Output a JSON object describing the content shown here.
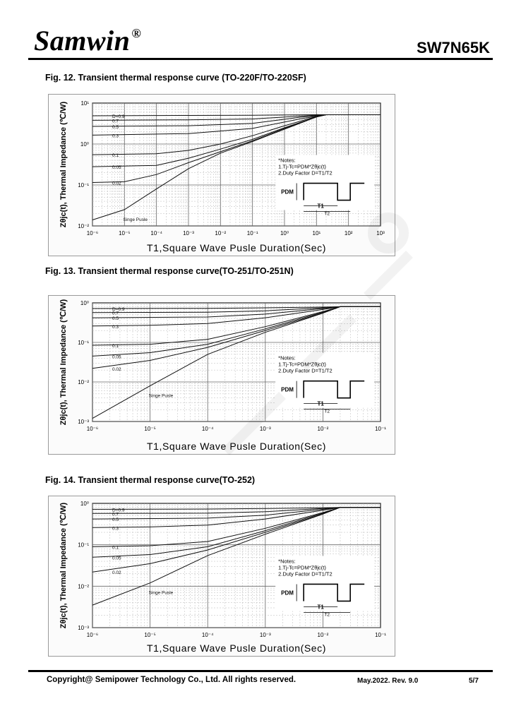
{
  "header": {
    "brand": "Samwin",
    "registered_mark": "®",
    "part_number": "SW7N65K"
  },
  "figures": [
    {
      "title": "Fig. 12. Transient thermal response curve (TO-220F/TO-220SF)"
    },
    {
      "title": "Fig. 13. Transient thermal response curve(TO-251/TO-251N)"
    },
    {
      "title": "Fig. 14. Transient thermal response curve(TO-252)"
    }
  ],
  "footer": {
    "copyright": "Copyright@ Semipower Technology Co., Ltd. All rights reserved.",
    "date_rev": "May.2022. Rev. 9.0",
    "page": "5/7"
  },
  "chart_data": [
    {
      "type": "line",
      "title": "Fig. 12. Transient thermal response curve (TO-220F/TO-220SF)",
      "xlabel": "T1,Square Wave Pusle Duration(Sec)",
      "ylabel": "Zθjc(t), Thermal Impedance (℃/W)",
      "xscale": "log",
      "yscale": "log",
      "xlim": [
        1e-06,
        1000
      ],
      "ylim": [
        0.01,
        10
      ],
      "x_ticks": [
        "10⁻⁶",
        "10⁻⁵",
        "10⁻⁴",
        "10⁻³",
        "10⁻²",
        "10⁻¹",
        "10⁰",
        "10¹",
        "10²",
        "10³"
      ],
      "y_ticks": [
        "10⁻²",
        "10⁻¹",
        "10⁰",
        "10¹"
      ],
      "grid": true,
      "series": [
        {
          "name": "D=0.9",
          "values": [
            [
              1e-06,
              4.9
            ],
            [
              0.001,
              5.0
            ],
            [
              0.1,
              5.05
            ],
            [
              10,
              5.2
            ],
            [
              1000,
              5.2
            ]
          ]
        },
        {
          "name": "0.7",
          "values": [
            [
              1e-06,
              3.8
            ],
            [
              0.001,
              3.9
            ],
            [
              0.1,
              4.1
            ],
            [
              3,
              4.8
            ],
            [
              20,
              5.2
            ],
            [
              1000,
              5.2
            ]
          ]
        },
        {
          "name": "0.5",
          "values": [
            [
              1e-06,
              2.7
            ],
            [
              0.001,
              2.8
            ],
            [
              0.1,
              3.2
            ],
            [
              3,
              4.5
            ],
            [
              20,
              5.2
            ],
            [
              1000,
              5.2
            ]
          ]
        },
        {
          "name": "0.3",
          "values": [
            [
              1e-06,
              1.65
            ],
            [
              0.001,
              1.8
            ],
            [
              0.1,
              2.4
            ],
            [
              3,
              4.1
            ],
            [
              20,
              5.2
            ],
            [
              1000,
              5.2
            ]
          ]
        },
        {
          "name": "0.1",
          "values": [
            [
              1e-06,
              0.55
            ],
            [
              0.0001,
              0.58
            ],
            [
              0.001,
              0.7
            ],
            [
              0.01,
              1.0
            ],
            [
              0.1,
              1.6
            ],
            [
              1,
              2.8
            ],
            [
              10,
              4.7
            ],
            [
              20,
              5.2
            ],
            [
              1000,
              5.2
            ]
          ]
        },
        {
          "name": "0.05",
          "values": [
            [
              1e-06,
              0.28
            ],
            [
              0.0001,
              0.3
            ],
            [
              0.001,
              0.45
            ],
            [
              0.01,
              0.75
            ],
            [
              0.1,
              1.3
            ],
            [
              1,
              2.5
            ],
            [
              10,
              4.6
            ],
            [
              20,
              5.2
            ],
            [
              1000,
              5.2
            ]
          ]
        },
        {
          "name": "0.02",
          "values": [
            [
              1e-06,
              0.115
            ],
            [
              1e-05,
              0.12
            ],
            [
              0.0001,
              0.18
            ],
            [
              0.001,
              0.35
            ],
            [
              0.01,
              0.65
            ],
            [
              0.1,
              1.2
            ],
            [
              1,
              2.4
            ],
            [
              10,
              4.6
            ],
            [
              20,
              5.2
            ],
            [
              1000,
              5.2
            ]
          ]
        },
        {
          "name": "Singe Pusle",
          "values": [
            [
              1e-06,
              0.014
            ],
            [
              1e-05,
              0.025
            ],
            [
              0.0001,
              0.08
            ],
            [
              0.001,
              0.25
            ],
            [
              0.01,
              0.6
            ],
            [
              0.1,
              1.15
            ],
            [
              1,
              2.3
            ],
            [
              10,
              4.6
            ],
            [
              20,
              5.2
            ],
            [
              1000,
              5.2
            ]
          ]
        }
      ],
      "notes": [
        "*Notes:",
        "1.Tj-Tc=PDM*Zθjc(t)",
        "2.Duty Factor D=T1/T2"
      ],
      "pulse_labels": {
        "pdm": "PDM",
        "t1": "T1",
        "t2": "T2"
      }
    },
    {
      "type": "line",
      "title": "Fig. 13. Transient thermal response curve(TO-251/TO-251N)",
      "xlabel": "T1,Square Wave Pusle Duration(Sec)",
      "ylabel": "Zθjc(t), Thermal Impedance (℃/W)",
      "xscale": "log",
      "yscale": "log",
      "xlim": [
        1e-06,
        0.1
      ],
      "ylim": [
        0.001,
        1
      ],
      "x_ticks": [
        "10⁻⁶",
        "10⁻⁵",
        "10⁻⁴",
        "10⁻³",
        "10⁻²",
        "10⁻¹"
      ],
      "y_ticks": [
        "10⁻³",
        "10⁻²",
        "10⁻¹",
        "10⁰"
      ],
      "grid": true,
      "series": [
        {
          "name": "D=0.9",
          "values": [
            [
              1e-06,
              0.72
            ],
            [
              0.0001,
              0.73
            ],
            [
              0.001,
              0.75
            ],
            [
              0.01,
              0.78
            ],
            [
              0.02,
              0.8
            ],
            [
              0.1,
              0.8
            ]
          ]
        },
        {
          "name": "0.7",
          "values": [
            [
              1e-06,
              0.57
            ],
            [
              0.0001,
              0.58
            ],
            [
              0.001,
              0.63
            ],
            [
              0.01,
              0.75
            ],
            [
              0.02,
              0.8
            ],
            [
              0.1,
              0.8
            ]
          ]
        },
        {
          "name": "0.5",
          "values": [
            [
              1e-06,
              0.42
            ],
            [
              0.0001,
              0.44
            ],
            [
              0.001,
              0.52
            ],
            [
              0.01,
              0.72
            ],
            [
              0.02,
              0.8
            ],
            [
              0.1,
              0.8
            ]
          ]
        },
        {
          "name": "0.3",
          "values": [
            [
              1e-06,
              0.26
            ],
            [
              1e-05,
              0.27
            ],
            [
              0.0001,
              0.3
            ],
            [
              0.001,
              0.42
            ],
            [
              0.01,
              0.68
            ],
            [
              0.02,
              0.8
            ],
            [
              0.1,
              0.8
            ]
          ]
        },
        {
          "name": "0.1",
          "values": [
            [
              1e-06,
              0.085
            ],
            [
              1e-05,
              0.09
            ],
            [
              0.0001,
              0.12
            ],
            [
              0.001,
              0.25
            ],
            [
              0.01,
              0.6
            ],
            [
              0.02,
              0.8
            ],
            [
              0.1,
              0.8
            ]
          ]
        },
        {
          "name": "0.05",
          "values": [
            [
              1e-06,
              0.045
            ],
            [
              1e-05,
              0.055
            ],
            [
              0.0001,
              0.09
            ],
            [
              0.001,
              0.22
            ],
            [
              0.01,
              0.58
            ],
            [
              0.02,
              0.8
            ],
            [
              0.1,
              0.8
            ]
          ]
        },
        {
          "name": "0.02",
          "values": [
            [
              1e-06,
              0.022
            ],
            [
              1e-05,
              0.035
            ],
            [
              0.0001,
              0.075
            ],
            [
              0.001,
              0.2
            ],
            [
              0.01,
              0.56
            ],
            [
              0.02,
              0.8
            ],
            [
              0.1,
              0.8
            ]
          ]
        },
        {
          "name": "Singe Pusle",
          "values": [
            [
              1e-06,
              0.0012
            ],
            [
              1e-05,
              0.008
            ],
            [
              0.0001,
              0.05
            ],
            [
              0.001,
              0.18
            ],
            [
              0.01,
              0.55
            ],
            [
              0.02,
              0.8
            ],
            [
              0.1,
              0.8
            ]
          ]
        }
      ],
      "notes": [
        "*Notes:",
        "1.Tj-Tc=PDM*Zθjc(t)",
        "2.Duty Factor D=T1/T2"
      ],
      "pulse_labels": {
        "pdm": "PDM",
        "t1": "T1",
        "t2": "T2"
      }
    },
    {
      "type": "line",
      "title": "Fig. 14. Transient thermal response curve(TO-252)",
      "xlabel": "T1,Square Wave Pusle Duration(Sec)",
      "ylabel": "Zθjc(t), Thermal Impedance (℃/W)",
      "xscale": "log",
      "yscale": "log",
      "xlim": [
        1e-06,
        0.1
      ],
      "ylim": [
        0.001,
        1
      ],
      "x_ticks": [
        "10⁻⁶",
        "10⁻⁵",
        "10⁻⁴",
        "10⁻³",
        "10⁻²",
        "10⁻¹"
      ],
      "y_ticks": [
        "10⁻³",
        "10⁻²",
        "10⁻¹",
        "10⁰"
      ],
      "grid": true,
      "series": [
        {
          "name": "D=0.9",
          "values": [
            [
              1e-06,
              0.72
            ],
            [
              0.0001,
              0.73
            ],
            [
              0.001,
              0.75
            ],
            [
              0.01,
              0.78
            ],
            [
              0.02,
              0.8
            ],
            [
              0.1,
              0.8
            ]
          ]
        },
        {
          "name": "0.7",
          "values": [
            [
              1e-06,
              0.57
            ],
            [
              0.0001,
              0.58
            ],
            [
              0.001,
              0.63
            ],
            [
              0.01,
              0.75
            ],
            [
              0.02,
              0.8
            ],
            [
              0.1,
              0.8
            ]
          ]
        },
        {
          "name": "0.5",
          "values": [
            [
              1e-06,
              0.42
            ],
            [
              0.0001,
              0.44
            ],
            [
              0.001,
              0.52
            ],
            [
              0.01,
              0.72
            ],
            [
              0.02,
              0.8
            ],
            [
              0.1,
              0.8
            ]
          ]
        },
        {
          "name": "0.3",
          "values": [
            [
              1e-06,
              0.26
            ],
            [
              1e-05,
              0.27
            ],
            [
              0.0001,
              0.3
            ],
            [
              0.001,
              0.42
            ],
            [
              0.01,
              0.68
            ],
            [
              0.02,
              0.8
            ],
            [
              0.1,
              0.8
            ]
          ]
        },
        {
          "name": "0.1",
          "values": [
            [
              1e-06,
              0.09
            ],
            [
              1e-05,
              0.095
            ],
            [
              0.0001,
              0.12
            ],
            [
              0.001,
              0.25
            ],
            [
              0.01,
              0.6
            ],
            [
              0.02,
              0.8
            ],
            [
              0.1,
              0.8
            ]
          ]
        },
        {
          "name": "0.05",
          "values": [
            [
              1e-06,
              0.05
            ],
            [
              1e-05,
              0.058
            ],
            [
              0.0001,
              0.09
            ],
            [
              0.001,
              0.22
            ],
            [
              0.01,
              0.58
            ],
            [
              0.02,
              0.8
            ],
            [
              0.1,
              0.8
            ]
          ]
        },
        {
          "name": "0.02",
          "values": [
            [
              1e-06,
              0.022
            ],
            [
              1e-05,
              0.035
            ],
            [
              0.0001,
              0.075
            ],
            [
              0.001,
              0.2
            ],
            [
              0.01,
              0.56
            ],
            [
              0.02,
              0.8
            ],
            [
              0.1,
              0.8
            ]
          ]
        },
        {
          "name": "Singe Pusle",
          "values": [
            [
              1e-06,
              0.0035
            ],
            [
              1e-05,
              0.012
            ],
            [
              0.0001,
              0.055
            ],
            [
              0.001,
              0.18
            ],
            [
              0.01,
              0.55
            ],
            [
              0.02,
              0.8
            ],
            [
              0.1,
              0.8
            ]
          ]
        }
      ],
      "notes": [
        "*Notes:",
        "1.Tj-Tc=PDM*Zθjc(t)",
        "2.Duty Factor D=T1/T2"
      ],
      "pulse_labels": {
        "pdm": "PDM",
        "t1": "T1",
        "t2": "T2"
      }
    }
  ]
}
